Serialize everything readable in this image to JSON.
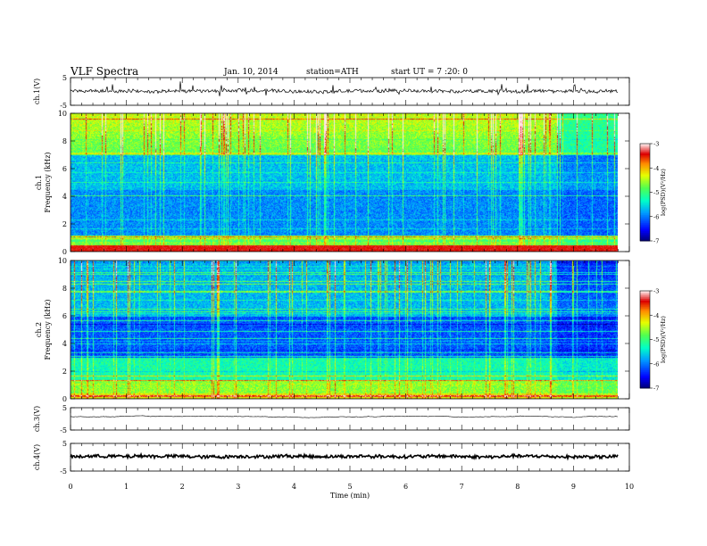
{
  "header": {
    "title": "VLF  Spectra",
    "date": "Jan. 10, 2014",
    "station": "station=ATH",
    "start": "start  UT  =   7  :20: 0"
  },
  "chart_data": [
    {
      "type": "line",
      "name": "ch1-waveform",
      "ylabel": "ch.1(V)",
      "ylim": [
        -5,
        5
      ],
      "yticks": [
        "5",
        "-5"
      ],
      "xlim": [
        0,
        10
      ],
      "level": 0.1
    },
    {
      "type": "heatmap",
      "name": "ch1-spectrogram",
      "ylabel": [
        "ch.1",
        "Frequency  (kHz)"
      ],
      "ylim": [
        0,
        10
      ],
      "yticks": [
        "0",
        "2",
        "4",
        "6",
        "8",
        "10"
      ],
      "xlim": [
        0,
        10
      ],
      "data_end_min": 9.8,
      "colorbar": {
        "label": "log(PSD)(V²/Hz)",
        "ticks": [
          "-3",
          "-4",
          "-5",
          "-6",
          "-7"
        ],
        "range": [
          -7,
          -3
        ]
      }
    },
    {
      "type": "heatmap",
      "name": "ch2-spectrogram",
      "ylabel": [
        "ch.2",
        "Frequency  (kHz)"
      ],
      "ylim": [
        0,
        10
      ],
      "yticks": [
        "0",
        "2",
        "4",
        "6",
        "8",
        "10"
      ],
      "xlim": [
        0,
        10
      ],
      "data_end_min": 9.8,
      "colorbar": {
        "label": "log(PSD)(V²/Hz)",
        "ticks": [
          "-3",
          "-4",
          "-5",
          "-6",
          "-7"
        ],
        "range": [
          -7,
          -3
        ]
      }
    },
    {
      "type": "line",
      "name": "ch3-waveform",
      "ylabel": "ch.3(V)",
      "ylim": [
        -5,
        5
      ],
      "yticks": [
        "5",
        "-5"
      ],
      "xlim": [
        0,
        10
      ],
      "level": 1.0
    },
    {
      "type": "line",
      "name": "ch4-waveform",
      "ylabel": "ch.4(V)",
      "ylim": [
        -5,
        5
      ],
      "yticks": [
        "5",
        "-5"
      ],
      "xlim": [
        0,
        10
      ],
      "level": 0.3
    }
  ],
  "xaxis": {
    "label": "Time  (min)",
    "ticks": [
      "0",
      "1",
      "2",
      "3",
      "4",
      "5",
      "6",
      "7",
      "8",
      "9",
      "10"
    ]
  }
}
